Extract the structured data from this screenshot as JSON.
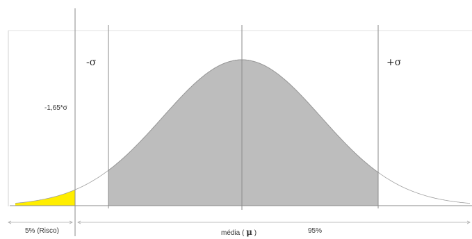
{
  "labels": {
    "neg_sigma": "-σ",
    "pos_sigma": "+σ",
    "critical_value": "-1,65*σ",
    "risk": "5% (Risco)",
    "mean_prefix": "média  (",
    "mean_symbol": "μ",
    "mean_suffix": ")",
    "confidence": "95%"
  },
  "colors": {
    "curve_fill": "#bdbdbd",
    "risk_fill": "#ffee00",
    "axis_lines": "#8a8a8a",
    "frame": "#d9d9d9"
  }
}
